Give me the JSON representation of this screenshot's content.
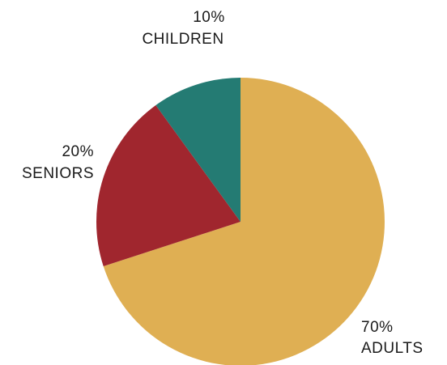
{
  "chart_data": {
    "type": "pie",
    "slices": [
      {
        "label": "ADULTS",
        "value": 70,
        "value_text": "70%",
        "color": "#DFAF53"
      },
      {
        "label": "SENIORS",
        "value": 20,
        "value_text": "20%",
        "color": "#A0262E"
      },
      {
        "label": "CHILDREN",
        "value": 10,
        "value_text": "10%",
        "color": "#247B73"
      }
    ],
    "start_angle": "12 o'clock",
    "direction": "clockwise"
  }
}
